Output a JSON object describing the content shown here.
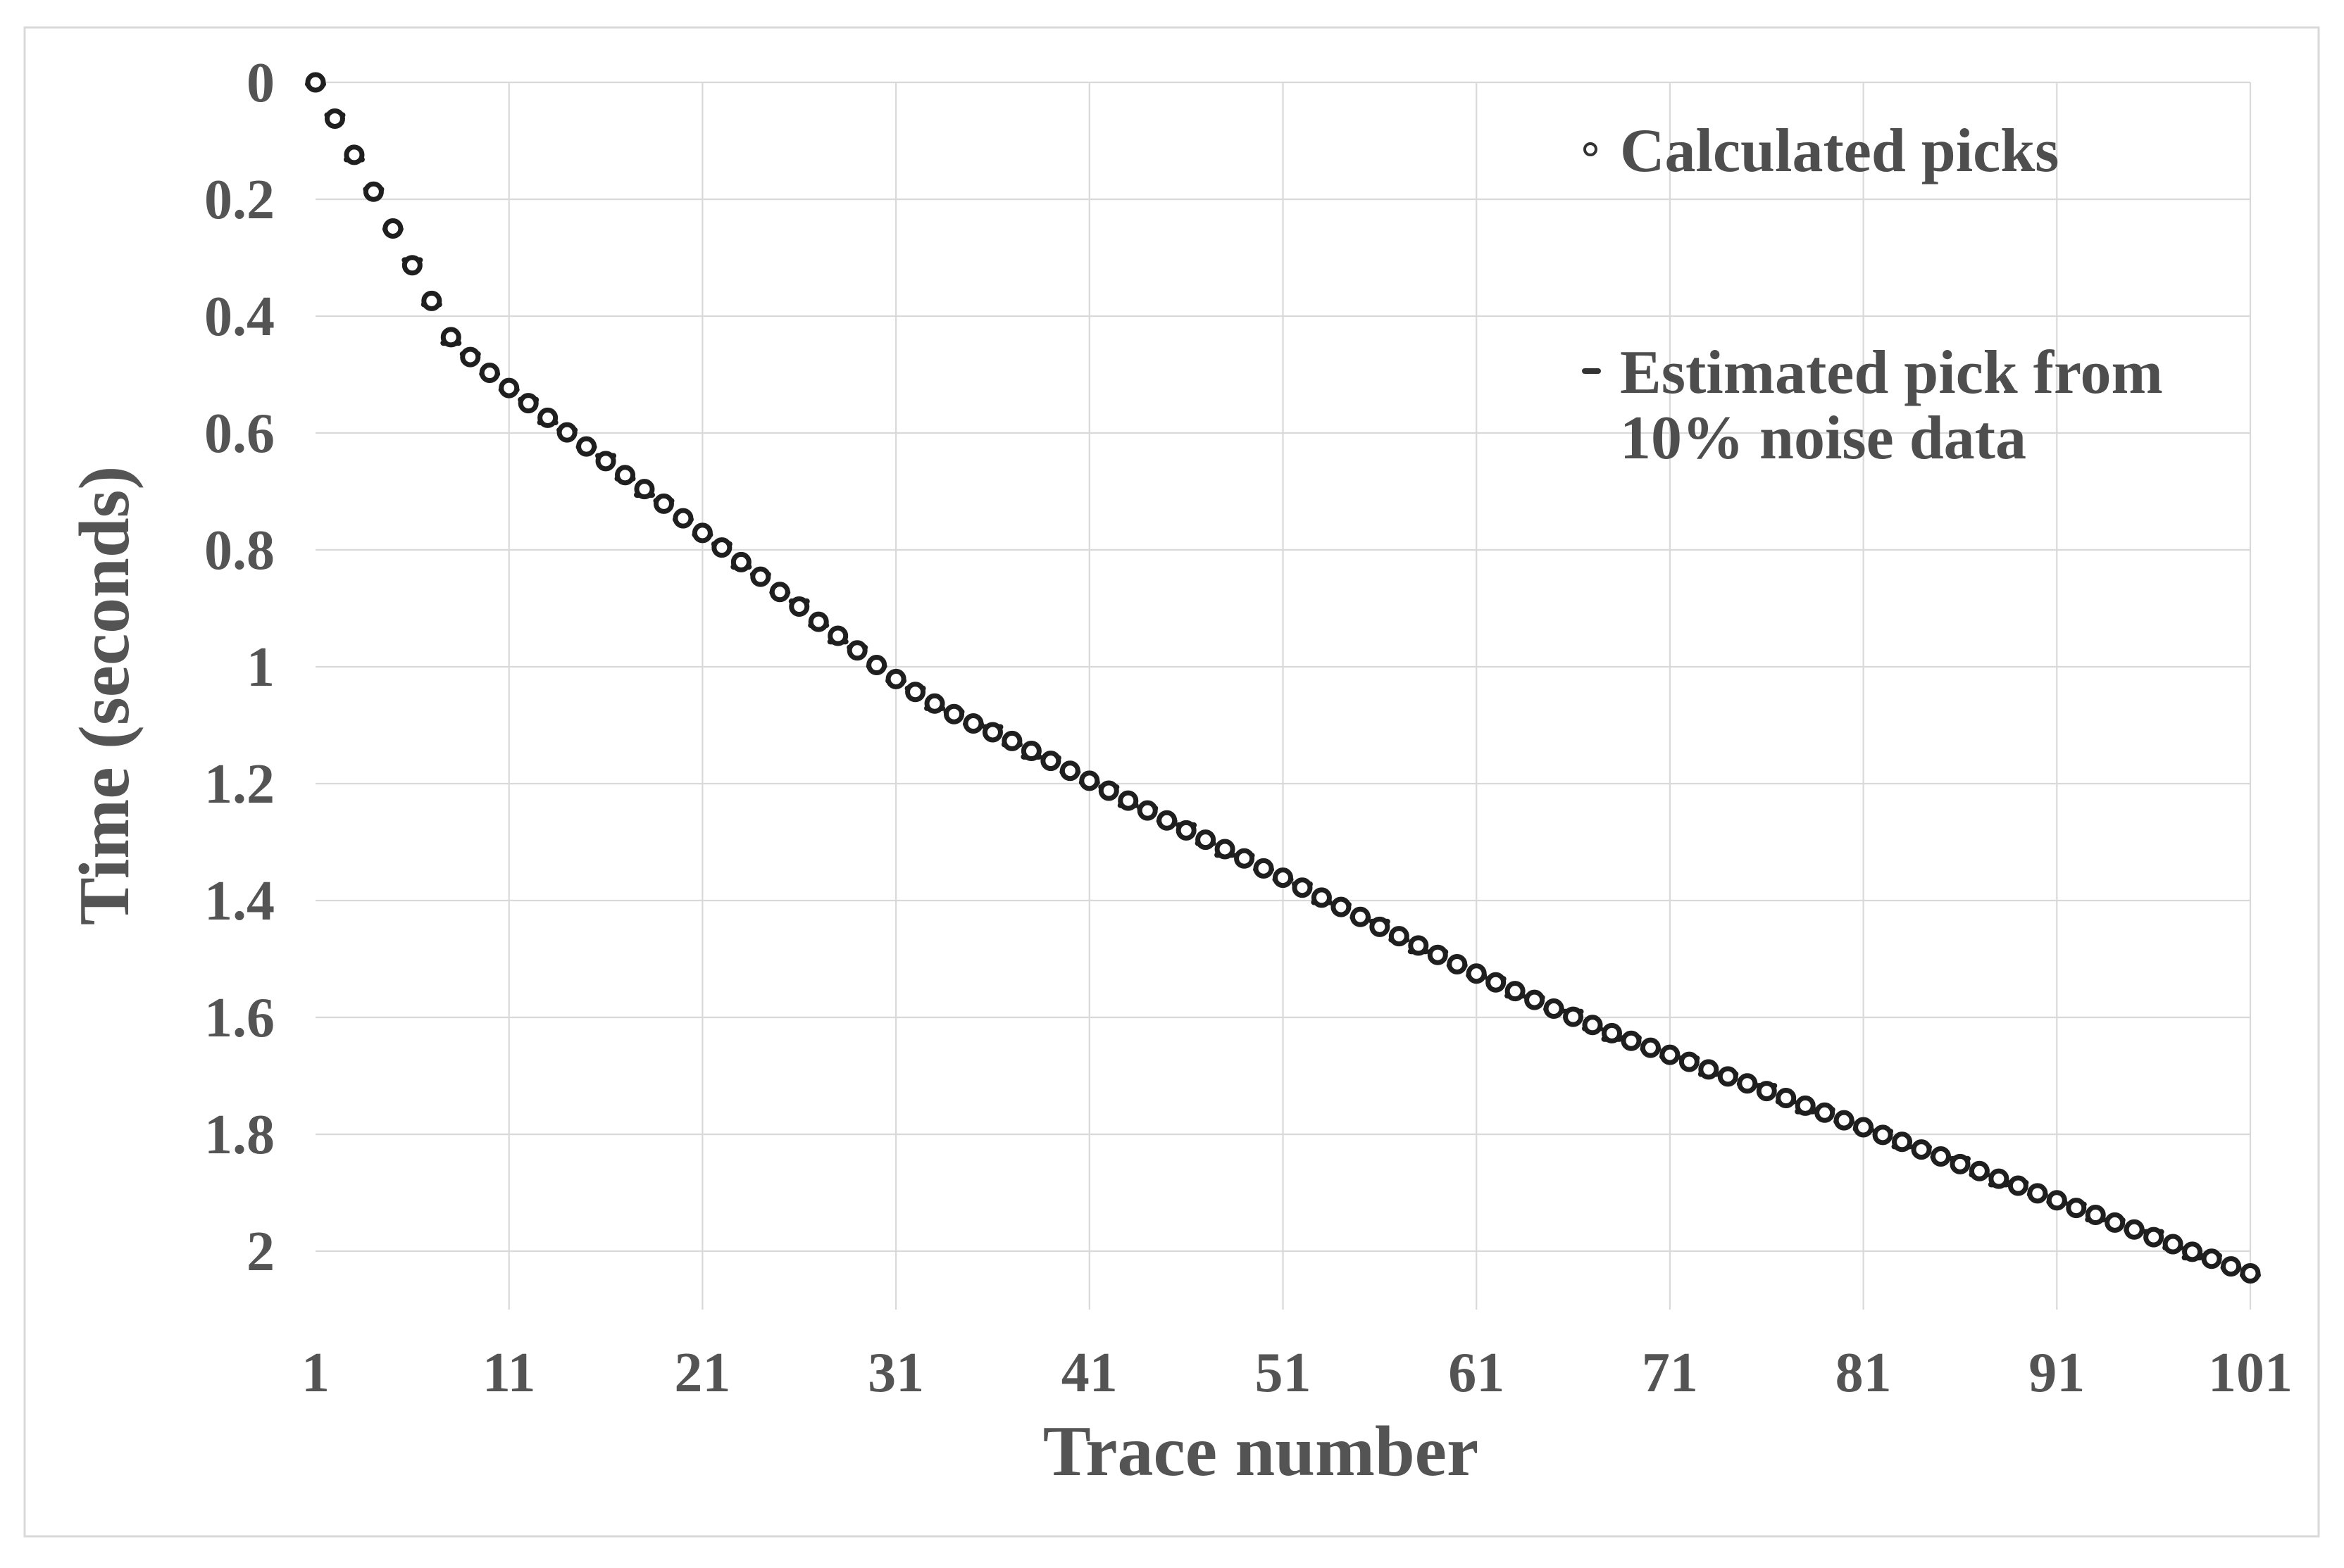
{
  "colors": {
    "background": "#ffffff",
    "border": "#d9d9d9",
    "gridline": "#d9d9d9",
    "text": "#545454",
    "marker": "#1f1f1f"
  },
  "legend": {
    "position": "inside-top-right",
    "calculated_label": "Calculated picks",
    "calculated_marker": "open-circle-icon",
    "estimated_label_line1": "Estimated pick from",
    "estimated_label_line2": "10% noise data",
    "estimated_marker": "dash-icon"
  },
  "chart_data": {
    "type": "scatter",
    "title": "",
    "xlabel": "Trace number",
    "ylabel": "Time (seconds)",
    "xlim": [
      1,
      101
    ],
    "ylim": [
      0,
      2.1
    ],
    "y_axis_reversed": true,
    "grid": true,
    "x_ticks": [
      1,
      11,
      21,
      31,
      41,
      51,
      61,
      71,
      81,
      91,
      101
    ],
    "x_tick_labels": [
      "1",
      "11",
      "21",
      "31",
      "41",
      "51",
      "61",
      "71",
      "81",
      "91",
      "101"
    ],
    "y_ticks": [
      0,
      0.2,
      0.4,
      0.6,
      0.8,
      1,
      1.2,
      1.4,
      1.6,
      1.8,
      2
    ],
    "y_tick_labels": [
      "0",
      "0.2",
      "0.4",
      "0.6",
      "0.8",
      "1",
      "1.2",
      "1.4",
      "1.6",
      "1.8",
      "2"
    ],
    "x": [
      1,
      2,
      3,
      4,
      5,
      6,
      7,
      8,
      9,
      10,
      11,
      12,
      13,
      14,
      15,
      16,
      17,
      18,
      19,
      20,
      21,
      22,
      23,
      24,
      25,
      26,
      27,
      28,
      29,
      30,
      31,
      32,
      33,
      34,
      35,
      36,
      37,
      38,
      39,
      40,
      41,
      42,
      43,
      44,
      45,
      46,
      47,
      48,
      49,
      50,
      51,
      52,
      53,
      54,
      55,
      56,
      57,
      58,
      59,
      60,
      61,
      62,
      63,
      64,
      65,
      66,
      67,
      68,
      69,
      70,
      71,
      72,
      73,
      74,
      75,
      76,
      77,
      78,
      79,
      80,
      81,
      82,
      83,
      84,
      85,
      86,
      87,
      88,
      89,
      90,
      91,
      92,
      93,
      94,
      95,
      96,
      97,
      98,
      99,
      100,
      101
    ],
    "series": [
      {
        "name": "Calculated picks",
        "marker": "open-circle",
        "values": [
          0.0,
          0.062,
          0.124,
          0.187,
          0.25,
          0.313,
          0.374,
          0.436,
          0.47,
          0.497,
          0.523,
          0.549,
          0.574,
          0.599,
          0.623,
          0.648,
          0.672,
          0.696,
          0.721,
          0.746,
          0.771,
          0.796,
          0.821,
          0.846,
          0.872,
          0.897,
          0.923,
          0.947,
          0.972,
          0.997,
          1.021,
          1.043,
          1.063,
          1.081,
          1.097,
          1.112,
          1.127,
          1.144,
          1.161,
          1.178,
          1.195,
          1.212,
          1.229,
          1.246,
          1.263,
          1.28,
          1.296,
          1.312,
          1.328,
          1.345,
          1.361,
          1.378,
          1.395,
          1.411,
          1.428,
          1.445,
          1.461,
          1.477,
          1.493,
          1.509,
          1.525,
          1.54,
          1.555,
          1.57,
          1.585,
          1.599,
          1.613,
          1.627,
          1.64,
          1.652,
          1.664,
          1.676,
          1.689,
          1.701,
          1.713,
          1.726,
          1.738,
          1.751,
          1.763,
          1.776,
          1.788,
          1.801,
          1.813,
          1.826,
          1.838,
          1.851,
          1.863,
          1.876,
          1.888,
          1.901,
          1.913,
          1.926,
          1.938,
          1.951,
          1.963,
          1.976,
          1.988,
          2.001,
          2.013,
          2.026,
          2.038
        ]
      },
      {
        "name": "Estimated pick from 10% noise data",
        "marker": "dash",
        "values": [
          0.003,
          0.056,
          0.132,
          0.183,
          0.251,
          0.304,
          0.38,
          0.446,
          0.465,
          0.499,
          0.526,
          0.543,
          0.582,
          0.595,
          0.624,
          0.639,
          0.678,
          0.706,
          0.716,
          0.748,
          0.774,
          0.79,
          0.829,
          0.842,
          0.873,
          0.888,
          0.929,
          0.957,
          0.967,
          0.999,
          1.024,
          1.037,
          1.071,
          1.077,
          1.098,
          1.103,
          1.133,
          1.154,
          1.156,
          1.18,
          1.198,
          1.206,
          1.237,
          1.242,
          1.264,
          1.271,
          1.302,
          1.322,
          1.323,
          1.347,
          1.364,
          1.372,
          1.403,
          1.407,
          1.429,
          1.436,
          1.467,
          1.487,
          1.488,
          1.511,
          1.528,
          1.534,
          1.563,
          1.566,
          1.586,
          1.59,
          1.619,
          1.637,
          1.635,
          1.654,
          1.667,
          1.67,
          1.697,
          1.697,
          1.714,
          1.717,
          1.744,
          1.761,
          1.758,
          1.778,
          1.791,
          1.795,
          1.821,
          1.822,
          1.839,
          1.842,
          1.869,
          1.886,
          1.883,
          1.903,
          1.916,
          1.92,
          1.946,
          1.947,
          1.964,
          1.967,
          1.994,
          2.011,
          2.008,
          2.028,
          2.041
        ]
      }
    ]
  }
}
